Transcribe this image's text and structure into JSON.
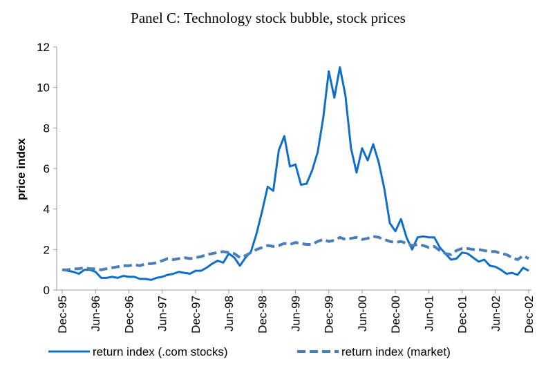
{
  "chart_data": {
    "type": "line",
    "title": "Panel C: Technology stock bubble, stock prices",
    "y_label": "price index",
    "categories": [
      "Dec-95",
      null,
      null,
      null,
      null,
      null,
      "Jun-96",
      null,
      null,
      null,
      null,
      null,
      "Dec-96",
      null,
      null,
      null,
      null,
      null,
      "Jun-97",
      null,
      null,
      null,
      null,
      null,
      "Dec-97",
      null,
      null,
      null,
      null,
      null,
      "Jun-98",
      null,
      null,
      null,
      null,
      null,
      "Dec-98",
      null,
      null,
      null,
      null,
      null,
      "Jun-99",
      null,
      null,
      null,
      null,
      null,
      "Dec-99",
      null,
      null,
      null,
      null,
      null,
      "Jun-00",
      null,
      null,
      null,
      null,
      null,
      "Dec-00",
      null,
      null,
      null,
      null,
      null,
      "Jun-01",
      null,
      null,
      null,
      null,
      null,
      "Dec-01",
      null,
      null,
      null,
      null,
      null,
      "Jun-02",
      null,
      null,
      null,
      null,
      null,
      "Dec-02"
    ],
    "series": [
      {
        "name": "return index (.com stocks)",
        "color": "#0f6fc6",
        "dash": false,
        "values": [
          1.0,
          0.95,
          0.9,
          0.8,
          1.0,
          1.0,
          0.9,
          0.6,
          0.6,
          0.65,
          0.6,
          0.7,
          0.65,
          0.65,
          0.55,
          0.55,
          0.5,
          0.6,
          0.65,
          0.75,
          0.8,
          0.9,
          0.85,
          0.8,
          0.95,
          0.95,
          1.1,
          1.3,
          1.45,
          1.35,
          1.8,
          1.6,
          1.2,
          1.6,
          1.9,
          2.8,
          3.9,
          5.1,
          4.9,
          6.9,
          7.6,
          6.1,
          6.2,
          5.2,
          5.25,
          5.9,
          6.8,
          8.5,
          10.8,
          9.5,
          11.0,
          9.6,
          7.0,
          5.8,
          7.0,
          6.4,
          7.2,
          6.3,
          5.0,
          3.3,
          2.9,
          3.5,
          2.6,
          2.0,
          2.6,
          2.65,
          2.6,
          2.6,
          2.1,
          1.8,
          1.5,
          1.55,
          1.85,
          1.8,
          1.6,
          1.4,
          1.5,
          1.2,
          1.15,
          1.0,
          0.8,
          0.85,
          0.75,
          1.1,
          0.95
        ]
      },
      {
        "name": "return index (market)",
        "color": "#4a7ebb",
        "dash": true,
        "values": [
          1.0,
          1.0,
          1.05,
          1.05,
          1.1,
          1.05,
          1.05,
          1.0,
          1.05,
          1.1,
          1.15,
          1.2,
          1.2,
          1.25,
          1.2,
          1.3,
          1.3,
          1.35,
          1.45,
          1.55,
          1.5,
          1.55,
          1.6,
          1.55,
          1.6,
          1.65,
          1.75,
          1.8,
          1.85,
          1.9,
          1.85,
          1.8,
          1.6,
          1.7,
          1.85,
          2.0,
          2.1,
          2.2,
          2.15,
          2.2,
          2.3,
          2.25,
          2.35,
          2.3,
          2.25,
          2.25,
          2.4,
          2.5,
          2.4,
          2.45,
          2.6,
          2.5,
          2.55,
          2.6,
          2.5,
          2.55,
          2.65,
          2.6,
          2.5,
          2.4,
          2.35,
          2.4,
          2.3,
          2.2,
          2.25,
          2.2,
          2.1,
          2.15,
          1.95,
          1.8,
          1.75,
          1.95,
          2.05,
          2.05,
          2.0,
          2.0,
          1.95,
          1.9,
          1.9,
          1.8,
          1.75,
          1.6,
          1.5,
          1.7,
          1.55
        ]
      }
    ],
    "ylim": [
      0,
      12
    ],
    "yticks": [
      0,
      2,
      4,
      6,
      8,
      10,
      12
    ],
    "grid": false,
    "legend": "bottom"
  }
}
